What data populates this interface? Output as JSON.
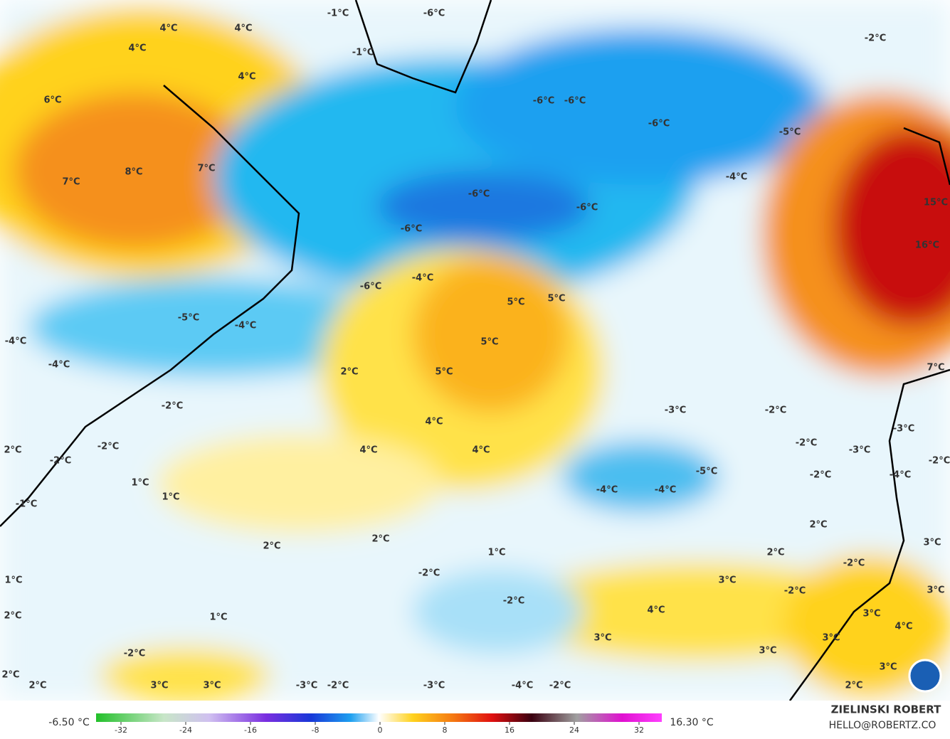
{
  "map_labels": [
    "-1°C",
    "-6°C",
    "-1°C",
    "-2°C",
    "4°C",
    "4°C",
    "4°C",
    "4°C",
    "6°C",
    "-6°C",
    "-6°C",
    "-6°C",
    "-5°C",
    "7°C",
    "8°C",
    "7°C",
    "-4°C",
    "-6°C",
    "-6°C",
    "15°C",
    "-6°C",
    "16°C",
    "-4°C",
    "-6°C",
    "5°C",
    "5°C",
    "-5°C",
    "-4°C",
    "-4°C",
    "5°C",
    "-4°C",
    "7°C",
    "2°C",
    "5°C",
    "-2°C",
    "-3°C",
    "-2°C",
    "4°C",
    "-3°C",
    "2°C",
    "-2°C",
    "-2°C",
    "4°C",
    "4°C",
    "-2°C",
    "-3°C",
    "-2°C",
    "-5°C",
    "-2°C",
    "-4°C",
    "1°C",
    "1°C",
    "-4°C",
    "-4°C",
    "-1°C",
    "2°C",
    "2°C",
    "2°C",
    "1°C",
    "2°C",
    "3°C",
    "-2°C",
    "-2°C",
    "1°C",
    "3°C",
    "-2°C",
    "3°C",
    "-2°C",
    "4°C",
    "2°C",
    "1°C",
    "3°C",
    "4°C",
    "3°C",
    "3°C",
    "-2°C",
    "3°C",
    "3°C",
    "2°C",
    "2°C",
    "3°C",
    "3°C",
    "-3°C",
    "-2°C",
    "-3°C",
    "-4°C",
    "-2°C",
    "2°C"
  ],
  "colorbar": {
    "min_label": "-6.50 °C",
    "max_label": "16.30 °C",
    "ticks": [
      -32,
      -24,
      -16,
      -8,
      0,
      8,
      16,
      24,
      32
    ]
  },
  "credit": {
    "author": "ZIELINSKI ROBERT",
    "contact": "HELLO@ROBERTZ.CO"
  }
}
